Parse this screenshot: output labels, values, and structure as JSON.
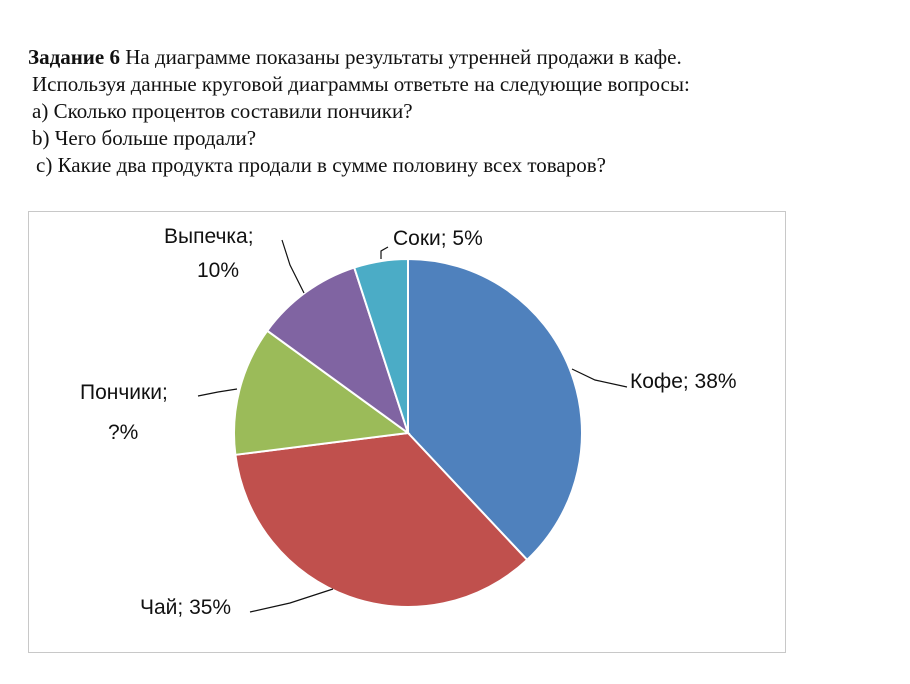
{
  "task": {
    "number": "Задание 6",
    "line1_rest": " На диаграмме показаны результаты утренней продажи в кафе.",
    "line2": "Используя данные круговой диаграммы ответьте на следующие вопросы:",
    "line3": "а) Сколько процентов составили пончики?",
    "line4": "b) Чего больше продали?",
    "line5": "c) Какие два продукта продали  в сумме половину всех товаров?"
  },
  "chart_data": {
    "type": "pie",
    "title": "",
    "slices": [
      {
        "category": "Кофе",
        "value": 38,
        "color": "#4f81bd",
        "label_lines": [
          "Кофе; 38%"
        ]
      },
      {
        "category": "Чай",
        "value": 35,
        "color": "#c0504d",
        "label_lines": [
          "Чай; 35%"
        ]
      },
      {
        "category": "Пончики",
        "value": 12,
        "color": "#9bbb59",
        "label_lines": [
          "Пончики;",
          "?%"
        ]
      },
      {
        "category": "Выпечка",
        "value": 10,
        "color": "#8064a2",
        "label_lines": [
          "Выпечка;",
          "10%"
        ]
      },
      {
        "category": "Соки",
        "value": 5,
        "color": "#4bacc6",
        "label_lines": [
          "Соки; 5%"
        ]
      }
    ],
    "start": "12 o'clock",
    "direction": "clockwise",
    "legend": "none"
  }
}
